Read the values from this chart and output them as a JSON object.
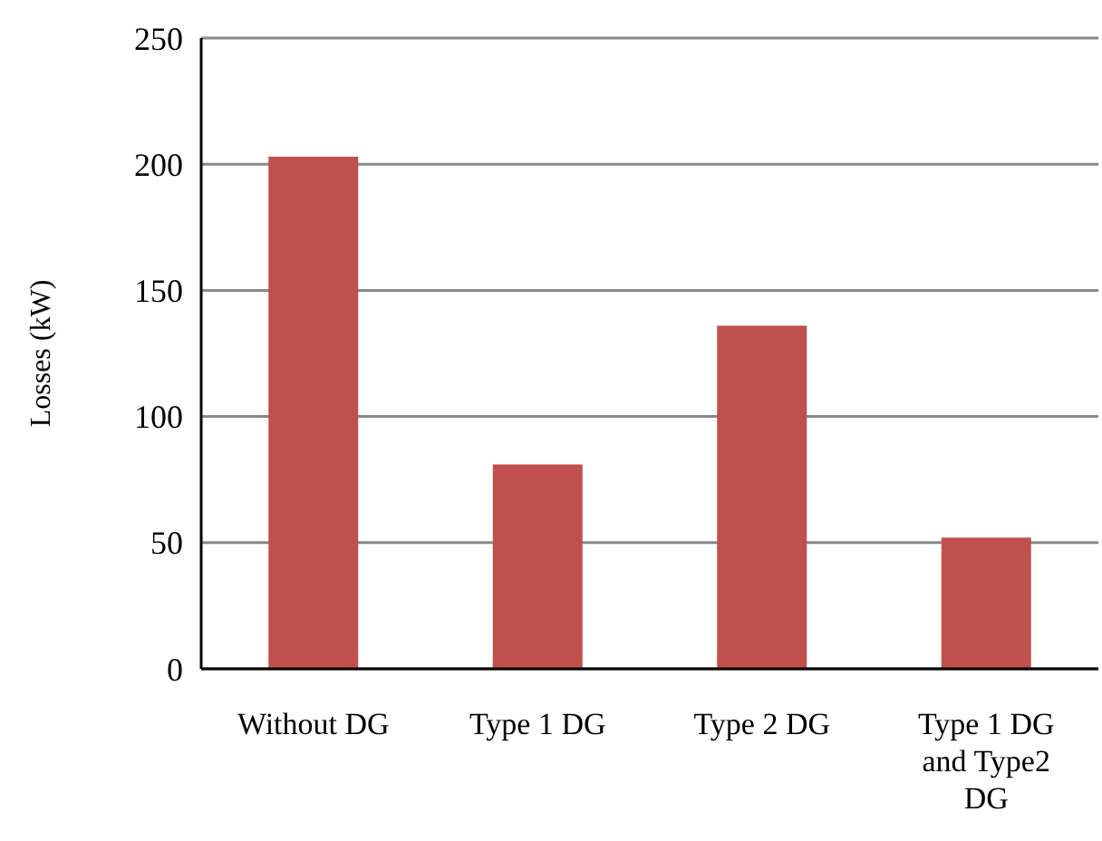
{
  "chart_data": {
    "type": "bar",
    "ylabel": "Losses (kW)",
    "categories": [
      "Without DG",
      "Type 1 DG",
      "Type 2 DG",
      "Type 1 DG and Type2 DG"
    ],
    "values": [
      203,
      81,
      136,
      52
    ],
    "color": "#c0504d",
    "ylim": [
      0,
      250
    ],
    "yticks": [
      0,
      50,
      100,
      150,
      200,
      250
    ],
    "grid": "y"
  }
}
